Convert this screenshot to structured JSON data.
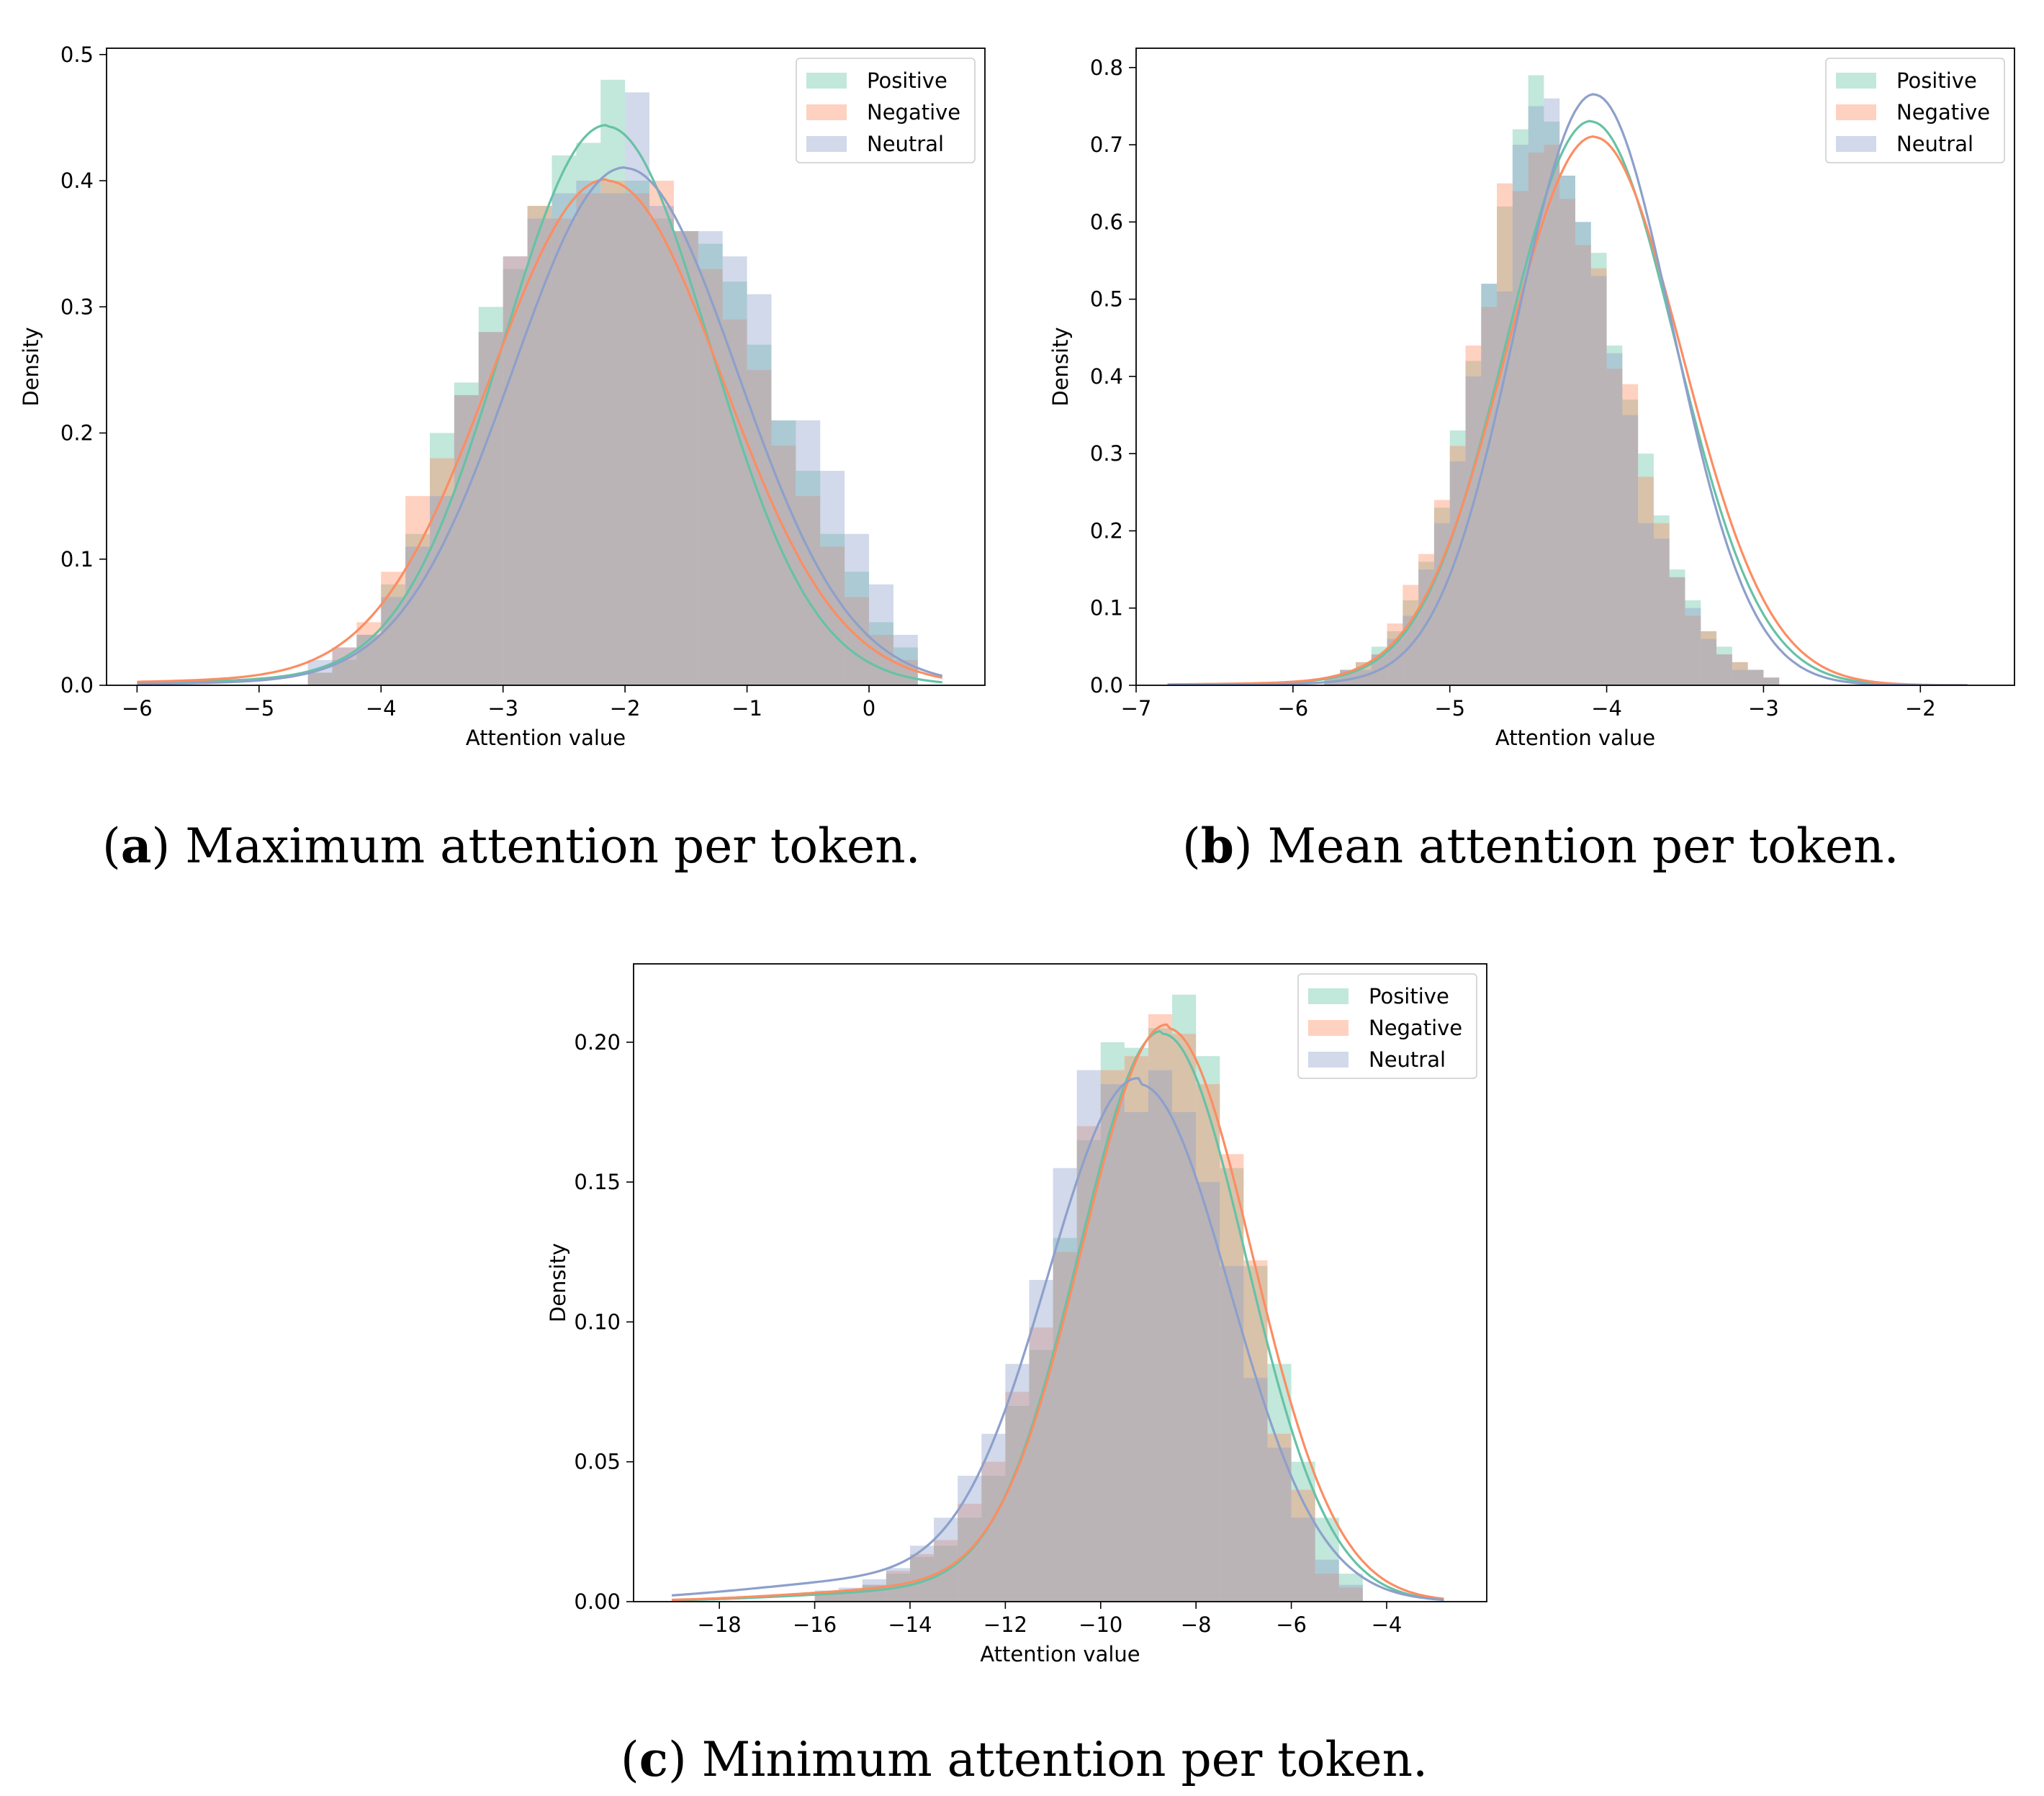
{
  "colors": {
    "Positive": "#66c2a5",
    "Negative": "#fc8d62",
    "Neutral": "#8da0cb"
  },
  "chart_data": [
    {
      "type": "bar",
      "id": "a",
      "caption_letter": "a",
      "caption_text": "Maximum attention per token.",
      "xlabel": "Attention value",
      "ylabel": "Density",
      "xlim": [
        -6.25,
        0.95
      ],
      "ylim": [
        0,
        0.505
      ],
      "xticks": [
        -6,
        -5,
        -4,
        -3,
        -2,
        -1,
        0
      ],
      "xtick_labels": [
        "−6",
        "−5",
        "−4",
        "−3",
        "−2",
        "−1",
        "0"
      ],
      "yticks": [
        0.0,
        0.1,
        0.2,
        0.3,
        0.4,
        0.5
      ],
      "ytick_labels": [
        "0.0",
        "0.1",
        "0.2",
        "0.3",
        "0.4",
        "0.5"
      ],
      "legend": [
        "Positive",
        "Negative",
        "Neutral"
      ],
      "legend_loc": "upper right",
      "bin_width": 0.2,
      "series": [
        {
          "name": "Positive",
          "bin_start": -4.6,
          "values": [
            0.01,
            0.02,
            0.04,
            0.08,
            0.12,
            0.2,
            0.24,
            0.3,
            0.33,
            0.38,
            0.42,
            0.43,
            0.48,
            0.4,
            0.37,
            0.36,
            0.35,
            0.32,
            0.27,
            0.21,
            0.17,
            0.12,
            0.09,
            0.05,
            0.03
          ]
        },
        {
          "name": "Negative",
          "bin_start": -4.6,
          "values": [
            0.01,
            0.03,
            0.05,
            0.09,
            0.15,
            0.18,
            0.23,
            0.28,
            0.34,
            0.38,
            0.37,
            0.39,
            0.4,
            0.39,
            0.4,
            0.36,
            0.33,
            0.29,
            0.25,
            0.19,
            0.15,
            0.11,
            0.07,
            0.04,
            0.02
          ]
        },
        {
          "name": "Neutral",
          "bin_start": -4.6,
          "values": [
            0.02,
            0.03,
            0.04,
            0.07,
            0.11,
            0.15,
            0.23,
            0.28,
            0.34,
            0.37,
            0.39,
            0.4,
            0.39,
            0.47,
            0.38,
            0.36,
            0.36,
            0.34,
            0.31,
            0.21,
            0.21,
            0.17,
            0.12,
            0.08,
            0.04
          ]
        }
      ],
      "kde": [
        {
          "name": "Positive",
          "mu": -2.15,
          "sigma": 0.85,
          "peak": 0.443,
          "xmin": -6.0,
          "xmax": 0.6,
          "tail_left": 0.004
        },
        {
          "name": "Negative",
          "mu": -2.15,
          "sigma": 0.95,
          "peak": 0.4,
          "xmin": -6.0,
          "xmax": 0.6,
          "tail_left": 0.004
        },
        {
          "name": "Neutral",
          "mu": -2.0,
          "sigma": 0.92,
          "peak": 0.41,
          "xmin": -6.0,
          "xmax": 0.6,
          "tail_left": 0.002
        }
      ]
    },
    {
      "type": "bar",
      "id": "b",
      "caption_letter": "b",
      "caption_text": "Mean attention per token.",
      "xlabel": "Attention value",
      "ylabel": "Density",
      "xlim": [
        -7.0,
        -1.4
      ],
      "ylim": [
        0,
        0.825
      ],
      "xticks": [
        -7,
        -6,
        -5,
        -4,
        -3,
        -2
      ],
      "xtick_labels": [
        "−7",
        "−6",
        "−5",
        "−4",
        "−3",
        "−2"
      ],
      "yticks": [
        0.0,
        0.1,
        0.2,
        0.3,
        0.4,
        0.5,
        0.6,
        0.7,
        0.8
      ],
      "ytick_labels": [
        "0.0",
        "0.1",
        "0.2",
        "0.3",
        "0.4",
        "0.5",
        "0.6",
        "0.7",
        "0.8"
      ],
      "legend": [
        "Positive",
        "Negative",
        "Neutral"
      ],
      "legend_loc": "upper right",
      "bin_width": 0.1,
      "series": [
        {
          "name": "Positive",
          "bin_start": -5.8,
          "values": [
            0.01,
            0.02,
            0.03,
            0.05,
            0.07,
            0.11,
            0.16,
            0.23,
            0.33,
            0.42,
            0.52,
            0.62,
            0.72,
            0.79,
            0.73,
            0.66,
            0.6,
            0.56,
            0.44,
            0.37,
            0.3,
            0.22,
            0.15,
            0.11,
            0.07,
            0.05,
            0.03,
            0.02,
            0.01
          ]
        },
        {
          "name": "Negative",
          "bin_start": -5.8,
          "values": [
            0.01,
            0.02,
            0.03,
            0.04,
            0.08,
            0.13,
            0.17,
            0.24,
            0.31,
            0.44,
            0.49,
            0.65,
            0.64,
            0.69,
            0.7,
            0.63,
            0.57,
            0.54,
            0.41,
            0.39,
            0.27,
            0.21,
            0.14,
            0.09,
            0.07,
            0.04,
            0.03,
            0.02,
            0.01
          ]
        },
        {
          "name": "Neutral",
          "bin_start": -5.8,
          "values": [
            0.01,
            0.02,
            0.02,
            0.04,
            0.06,
            0.09,
            0.15,
            0.21,
            0.29,
            0.4,
            0.52,
            0.51,
            0.7,
            0.75,
            0.76,
            0.66,
            0.6,
            0.53,
            0.43,
            0.35,
            0.21,
            0.19,
            0.14,
            0.1,
            0.06,
            0.04,
            0.02,
            0.02,
            0.01
          ]
        }
      ],
      "kde": [
        {
          "name": "Positive",
          "mu": -4.1,
          "sigma": 0.54,
          "peak": 0.73,
          "xmin": -6.8,
          "xmax": -1.7,
          "tail_left": 0.003
        },
        {
          "name": "Negative",
          "mu": -4.08,
          "sigma": 0.56,
          "peak": 0.71,
          "xmin": -6.8,
          "xmax": -1.7,
          "tail_left": 0.003
        },
        {
          "name": "Neutral",
          "mu": -4.08,
          "sigma": 0.5,
          "peak": 0.765,
          "xmin": -6.8,
          "xmax": -1.7,
          "tail_left": 0.002
        }
      ]
    },
    {
      "type": "bar",
      "id": "c",
      "caption_letter": "c",
      "caption_text": "Minimum attention per token.",
      "xlabel": "Attention value",
      "ylabel": "Density",
      "xlim": [
        -19.8,
        -1.9
      ],
      "ylim": [
        0,
        0.228
      ],
      "xticks": [
        -18,
        -16,
        -14,
        -12,
        -10,
        -8,
        -6,
        -4
      ],
      "xtick_labels": [
        "−18",
        "−16",
        "−14",
        "−12",
        "−10",
        "−8",
        "−6",
        "−4"
      ],
      "yticks": [
        0.0,
        0.05,
        0.1,
        0.15,
        0.2
      ],
      "ytick_labels": [
        "0.00",
        "0.05",
        "0.10",
        "0.15",
        "0.20"
      ],
      "legend": [
        "Positive",
        "Negative",
        "Neutral"
      ],
      "legend_loc": "upper right",
      "bin_width": 0.5,
      "series": [
        {
          "name": "Positive",
          "bin_start": -16.0,
          "values": [
            0.003,
            0.004,
            0.006,
            0.01,
            0.016,
            0.02,
            0.03,
            0.045,
            0.07,
            0.09,
            0.13,
            0.165,
            0.2,
            0.198,
            0.205,
            0.217,
            0.195,
            0.155,
            0.12,
            0.085,
            0.05,
            0.03,
            0.01
          ]
        },
        {
          "name": "Negative",
          "bin_start": -16.0,
          "values": [
            0.003,
            0.004,
            0.006,
            0.011,
            0.017,
            0.022,
            0.035,
            0.05,
            0.075,
            0.098,
            0.125,
            0.17,
            0.19,
            0.195,
            0.21,
            0.203,
            0.185,
            0.16,
            0.122,
            0.06,
            0.04,
            0.01,
            0.005
          ]
        },
        {
          "name": "Neutral",
          "bin_start": -16.0,
          "values": [
            0.004,
            0.005,
            0.008,
            0.012,
            0.02,
            0.03,
            0.045,
            0.06,
            0.085,
            0.115,
            0.155,
            0.19,
            0.185,
            0.175,
            0.19,
            0.175,
            0.15,
            0.12,
            0.08,
            0.055,
            0.03,
            0.015,
            0.006
          ]
        }
      ],
      "kde": [
        {
          "name": "Positive",
          "mu": -8.7,
          "sigma": 1.75,
          "peak": 0.203,
          "xmin": -19.0,
          "xmax": -2.8,
          "tail_left": 0.004
        },
        {
          "name": "Negative",
          "mu": -8.6,
          "sigma": 1.78,
          "peak": 0.205,
          "xmin": -19.0,
          "xmax": -2.8,
          "tail_left": 0.005
        },
        {
          "name": "Neutral",
          "mu": -9.2,
          "sigma": 1.9,
          "peak": 0.185,
          "xmin": -19.0,
          "xmax": -2.8,
          "tail_left": 0.008
        }
      ]
    }
  ]
}
